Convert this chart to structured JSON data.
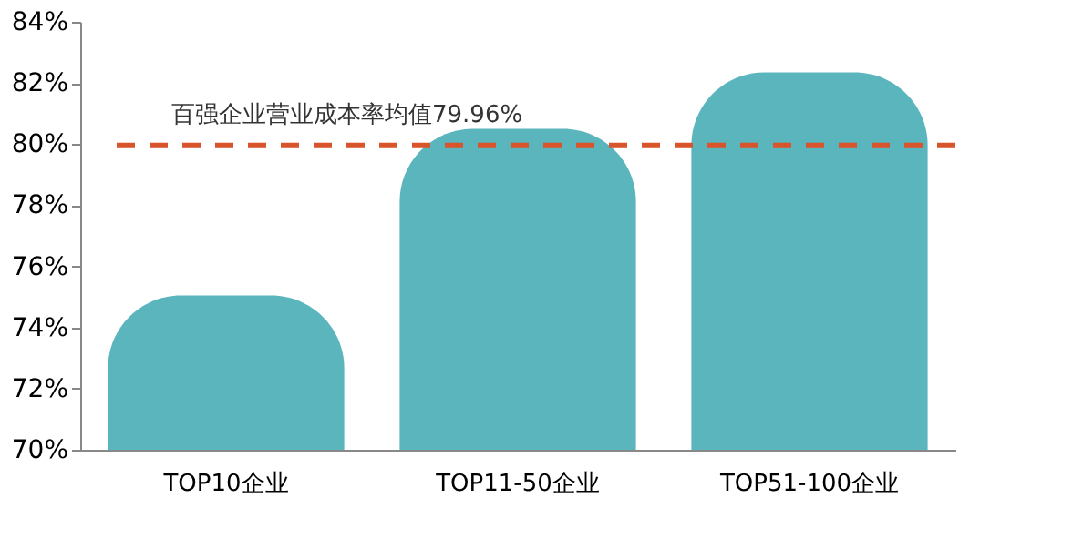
{
  "chart_data": {
    "type": "bar",
    "categories": [
      "TOP10企业",
      "TOP11-50企业",
      "TOP51-100企业"
    ],
    "values": [
      75.05,
      80.5,
      82.35
    ],
    "color": "#5bb5bd",
    "ylim": [
      70,
      84
    ],
    "yticks": [
      {
        "value": 70,
        "label": "70%"
      },
      {
        "value": 72,
        "label": "72%"
      },
      {
        "value": 74,
        "label": "74%"
      },
      {
        "value": 76,
        "label": "76%"
      },
      {
        "value": 78,
        "label": "78%"
      },
      {
        "value": 80,
        "label": "80%"
      },
      {
        "value": 82,
        "label": "82%"
      },
      {
        "value": 84,
        "label": "84%"
      }
    ],
    "ref_lines": [
      {
        "axis": "y",
        "value": 79.96,
        "label": "百强企业营业成本率均值79.96%",
        "color": "#d9542b",
        "line_style": "dashed"
      }
    ],
    "grid": false
  }
}
